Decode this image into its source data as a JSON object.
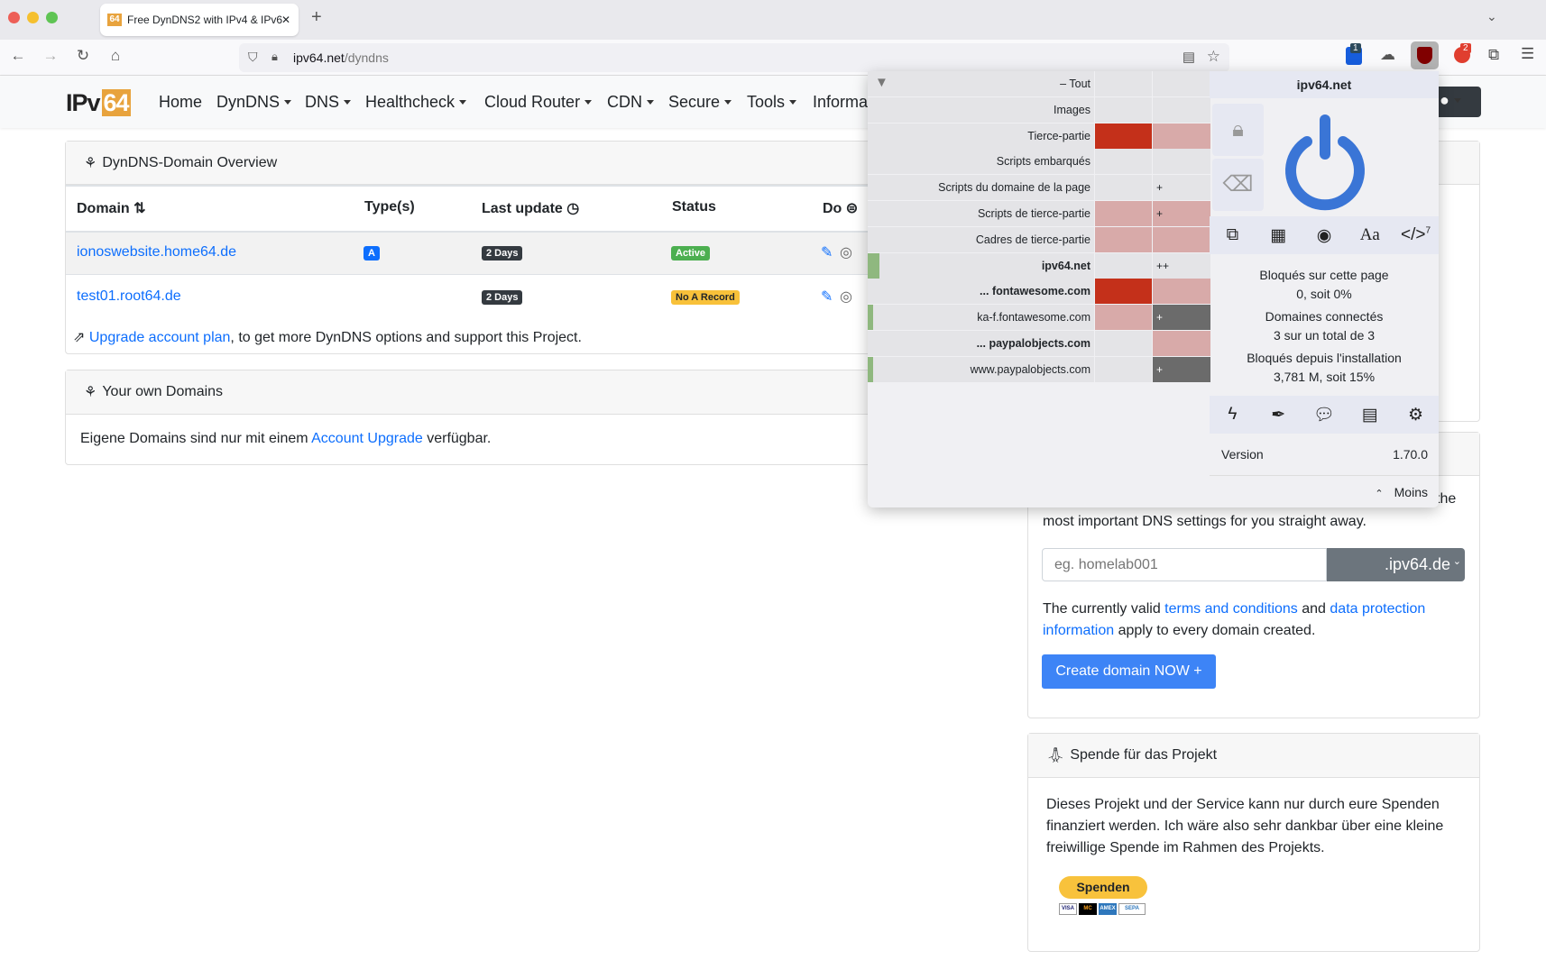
{
  "browser": {
    "tab_title": "Free DynDNS2 with IPv4 & IPv6",
    "favicon": "64",
    "url_host": "ipv64.net",
    "url_path": "/dyndns",
    "badges": {
      "bitwarden": "1",
      "ext2": "2"
    }
  },
  "nav": {
    "logo_text": "IPv",
    "logo_num": "64",
    "items": [
      {
        "label": "Home",
        "dropdown": false
      },
      {
        "label": "DynDNS",
        "dropdown": true
      },
      {
        "label": "DNS",
        "dropdown": true
      },
      {
        "label": "Healthcheck",
        "dropdown": true
      },
      {
        "label": "Cloud Router",
        "dropdown": true
      },
      {
        "label": "CDN",
        "dropdown": true
      },
      {
        "label": "Secure",
        "dropdown": true
      },
      {
        "label": "Tools",
        "dropdown": true
      },
      {
        "label": "Informa",
        "dropdown": false
      }
    ]
  },
  "overview": {
    "title": "DynDNS-Domain Overview",
    "headers": [
      "Domain",
      "Type(s)",
      "Last update",
      "Status",
      "Do"
    ],
    "rows": [
      {
        "domain": "ionoswebsite.home64.de",
        "type": "A",
        "last_update": "2 Days",
        "status": "Active",
        "status_color": "#4caf50"
      },
      {
        "domain": "test01.root64.de",
        "type": "",
        "last_update": "2 Days",
        "status": "No A Record",
        "status_color": "#f8c13a"
      }
    ],
    "upgrade_link": "Upgrade account plan",
    "upgrade_text": ", to get more DynDNS options and support this Project."
  },
  "own_domains": {
    "title": "Your own Domains",
    "text_before": "Eigene Domains sind nur mit einem ",
    "link": "Account Upgrade",
    "text_after": " verfügbar."
  },
  "create": {
    "partial_text": "the",
    "text": "most important DNS settings for you straight away.",
    "placeholder": "eg. homelab001",
    "suffix": ".ipv64.de",
    "terms_before": "The currently valid ",
    "terms_link": "terms and conditions",
    "terms_mid": " and ",
    "privacy_link": "data protection information",
    "terms_after": " apply to every domain created.",
    "button": "Create domain NOW +"
  },
  "donate": {
    "title": "Spende für das Projekt",
    "text": "Dieses Projekt und der Service kann nur durch eure Spenden finanziert werden. Ich wäre also sehr dankbar über eine kleine freiwillige Spende im Rahmen des Projekts.",
    "button": "Spenden",
    "cards": [
      "VISA",
      "MC",
      "AMEX",
      "SEPA"
    ]
  },
  "ublock": {
    "domain": "ipv64.net",
    "rows": [
      {
        "label": "– Tout",
        "c1": "",
        "c2": "",
        "c1c": "",
        "c2c": "",
        "green": 0,
        "bold": false
      },
      {
        "label": "Images",
        "c1": "",
        "c2": "",
        "c1c": "",
        "c2c": "",
        "green": 0,
        "bold": false
      },
      {
        "label": "Tierce-partie",
        "c1": "",
        "c2": "",
        "c1c": "red",
        "c2c": "pink",
        "green": 0,
        "bold": false
      },
      {
        "label": "Scripts embarqués",
        "c1": "",
        "c2": "",
        "c1c": "",
        "c2c": "",
        "green": 0,
        "bold": false
      },
      {
        "label": "Scripts du domaine de la page",
        "c1": "",
        "c2": "+",
        "c1c": "",
        "c2c": "",
        "green": 0,
        "bold": false
      },
      {
        "label": "Scripts de tierce-partie",
        "c1": "",
        "c2": "+",
        "c1c": "pink",
        "c2c": "pink",
        "green": 0,
        "bold": false
      },
      {
        "label": "Cadres de tierce-partie",
        "c1": "",
        "c2": "",
        "c1c": "pink",
        "c2c": "pink",
        "green": 0,
        "bold": false
      },
      {
        "label": "ipv64.net",
        "c1": "",
        "c2": "++",
        "c1c": "",
        "c2c": "",
        "green": 2,
        "bold": true
      },
      {
        "label": "... fontawesome.com",
        "c1": "",
        "c2": "",
        "c1c": "red",
        "c2c": "pink",
        "green": 0,
        "bold": true
      },
      {
        "label": "ka-f.fontawesome.com",
        "c1": "",
        "c2": "+",
        "c1c": "pink",
        "c2c": "dgrey",
        "green": 1,
        "bold": false
      },
      {
        "label": "... paypalobjects.com",
        "c1": "",
        "c2": "",
        "c1c": "",
        "c2c": "pink",
        "green": 0,
        "bold": true
      },
      {
        "label": "www.paypalobjects.com",
        "c1": "",
        "c2": "+",
        "c1c": "",
        "c2c": "dgrey",
        "green": 1,
        "bold": false
      }
    ],
    "script_count": "7",
    "stats": {
      "blocked_page_label": "Bloqués sur cette page",
      "blocked_page": "0, soit 0%",
      "domains_label": "Domaines connectés",
      "domains": "3 sur un total de 3",
      "blocked_total_label": "Bloqués depuis l'installation",
      "blocked_total": "3,781 M, soit 15%"
    },
    "version_label": "Version",
    "version": "1.70.0",
    "less": "Moins",
    "power_color": "#3a75d6"
  }
}
